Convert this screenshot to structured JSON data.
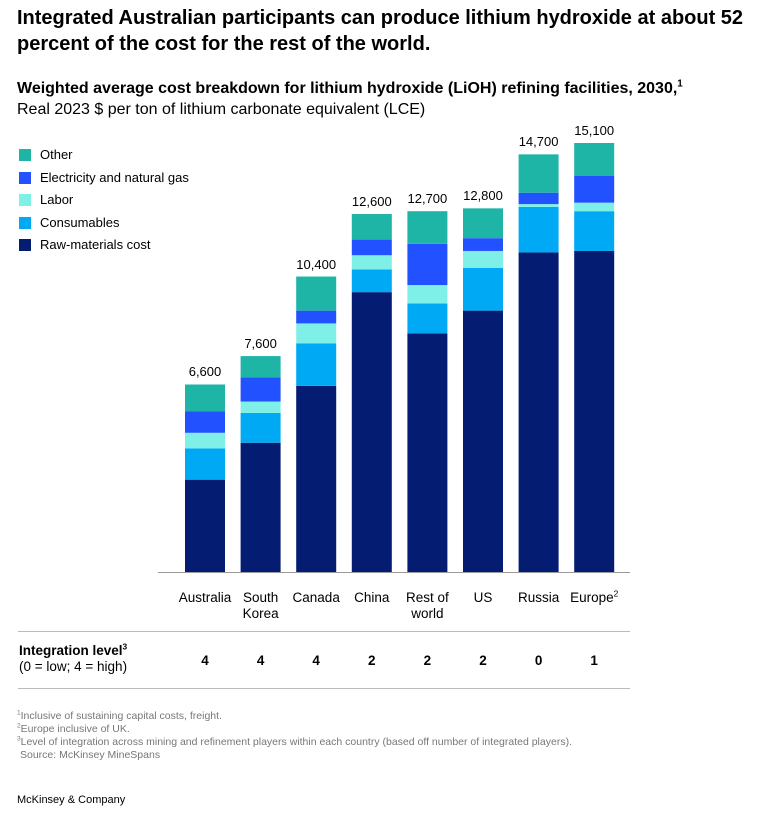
{
  "chart_data": {
    "type": "stacked_bar",
    "title": "Integrated Australian participants can produce lithium hydroxide at about 52 percent of the cost for the rest of the world.",
    "subtitle": "Weighted average cost breakdown for lithium hydroxide (LiOH) refining facilities, 2030,",
    "subtitle_note_mark": "1",
    "units": "Real 2023 $ per ton of lithium carbonate equivalent (LCE)",
    "categories": [
      "Australia",
      "South Korea",
      "Canada",
      "China",
      "Rest of world",
      "US",
      "Russia",
      "Europe"
    ],
    "category_note_marks": [
      null,
      null,
      null,
      null,
      null,
      null,
      null,
      "2"
    ],
    "series": [
      {
        "name": "Raw-materials cost",
        "color": "#051c73",
        "values": [
          3250,
          4550,
          6550,
          9850,
          8400,
          9200,
          11250,
          11300
        ]
      },
      {
        "name": "Consumables",
        "color": "#00a9f4",
        "values": [
          1100,
          1050,
          1500,
          800,
          1050,
          1500,
          1600,
          1400
        ]
      },
      {
        "name": "Labor",
        "color": "#7ff0e8",
        "values": [
          550,
          400,
          700,
          500,
          650,
          600,
          100,
          300
        ]
      },
      {
        "name": "Electricity and natural gas",
        "color": "#2251ff",
        "values": [
          750,
          850,
          450,
          550,
          1450,
          450,
          400,
          950
        ]
      },
      {
        "name": "Other",
        "color": "#1eb4a6",
        "values": [
          950,
          750,
          1200,
          900,
          1150,
          1050,
          1350,
          1150
        ]
      }
    ],
    "totals": [
      6600,
      7600,
      10400,
      12600,
      12700,
      12800,
      14700,
      15100
    ],
    "total_labels": [
      "6,600",
      "7,600",
      "10,400",
      "12,600",
      "12,700",
      "12,800",
      "14,700",
      "15,100"
    ],
    "integration": {
      "label": "Integration level",
      "label_note_mark": "3",
      "scale": "(0 = low; 4 = high)",
      "values": [
        4,
        4,
        4,
        2,
        2,
        2,
        0,
        1
      ]
    },
    "footnotes": [
      {
        "mark": "1",
        "text": "Inclusive of sustaining capital costs, freight."
      },
      {
        "mark": "2",
        "text": "Europe inclusive of UK."
      },
      {
        "mark": "3",
        "text": "Level of integration across mining and refinement players within each country (based off number of integrated players)."
      }
    ],
    "source": "Source: McKinsey MineSpans",
    "brand": "McKinsey & Company"
  }
}
